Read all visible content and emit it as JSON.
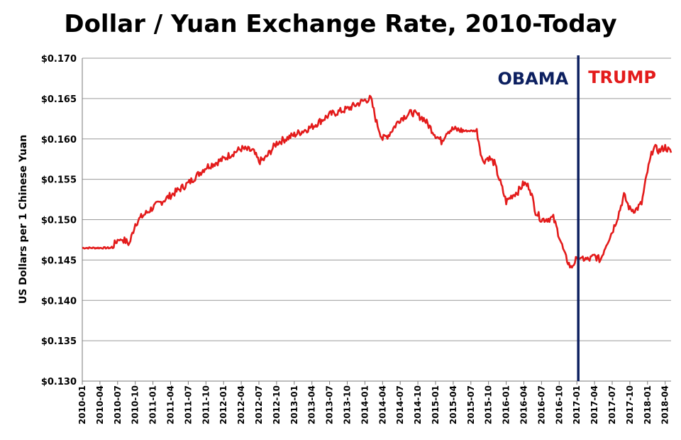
{
  "chart_data": {
    "type": "line",
    "title": "Dollar / Yuan Exchange Rate, 2010-Today",
    "xlabel": "",
    "ylabel": "US Dollars per 1 Chinese Yuan",
    "ylim": [
      0.13,
      0.17
    ],
    "xlim": [
      "2010-01",
      "2018-05"
    ],
    "y_ticks": [
      "$0.130",
      "$0.135",
      "$0.140",
      "$0.145",
      "$0.150",
      "$0.155",
      "$0.160",
      "$0.165",
      "$0.170"
    ],
    "y_tick_values": [
      0.13,
      0.135,
      0.14,
      0.145,
      0.15,
      0.155,
      0.16,
      0.165,
      0.17
    ],
    "x_ticks": [
      "2010-01",
      "2010-04",
      "2010-07",
      "2010-10",
      "2011-01",
      "2011-04",
      "2011-07",
      "2011-10",
      "2012-01",
      "2012-04",
      "2012-07",
      "2012-10",
      "2013-01",
      "2013-04",
      "2013-07",
      "2013-10",
      "2014-01",
      "2014-04",
      "2014-07",
      "2014-10",
      "2015-01",
      "2015-04",
      "2015-07",
      "2015-10",
      "2016-01",
      "2016-04",
      "2016-07",
      "2016-10",
      "2017-01",
      "2017-04",
      "2017-07",
      "2017-10",
      "2018-01",
      "2018-04"
    ],
    "grid": "horizontal",
    "line_color": "#e31b1b",
    "series": [
      {
        "x": [
          "2010-01",
          "2010-04",
          "2010-06",
          "2010-07",
          "2010-08",
          "2010-09",
          "2010-10",
          "2010-11",
          "2011-01",
          "2011-04",
          "2011-07",
          "2011-10",
          "2012-01",
          "2012-02",
          "2012-04",
          "2012-06",
          "2012-07",
          "2012-08",
          "2012-10",
          "2013-01",
          "2013-04",
          "2013-07",
          "2013-10",
          "2014-01",
          "2014-02",
          "2014-03",
          "2014-04",
          "2014-05",
          "2014-07",
          "2014-09",
          "2014-11",
          "2015-01",
          "2015-02",
          "2015-03",
          "2015-04",
          "2015-06",
          "2015-08",
          "2015-09",
          "2015-10",
          "2015-11",
          "2016-01",
          "2016-02",
          "2016-03",
          "2016-04",
          "2016-05",
          "2016-06",
          "2016-07",
          "2016-09",
          "2016-10",
          "2016-11",
          "2016-12",
          "2017-01",
          "2017-02",
          "2017-03",
          "2017-04",
          "2017-05",
          "2017-06",
          "2017-07",
          "2017-08",
          "2017-09",
          "2017-10",
          "2017-11",
          "2017-12",
          "2018-01",
          "2018-02",
          "2018-03",
          "2018-04",
          "2018-05"
        ],
        "values": [
          0.1465,
          0.1465,
          0.1465,
          0.1475,
          0.1475,
          0.147,
          0.1495,
          0.1503,
          0.1515,
          0.153,
          0.1545,
          0.1565,
          0.1575,
          0.158,
          0.1588,
          0.1585,
          0.1572,
          0.1575,
          0.1595,
          0.1605,
          0.1615,
          0.163,
          0.1637,
          0.1648,
          0.165,
          0.162,
          0.16,
          0.1605,
          0.1625,
          0.1633,
          0.1625,
          0.1605,
          0.1597,
          0.161,
          0.1612,
          0.161,
          0.161,
          0.1572,
          0.1577,
          0.157,
          0.1522,
          0.153,
          0.1535,
          0.1545,
          0.154,
          0.151,
          0.15,
          0.1502,
          0.148,
          0.1455,
          0.144,
          0.1452,
          0.1452,
          0.145,
          0.1455,
          0.145,
          0.147,
          0.1485,
          0.1505,
          0.153,
          0.1513,
          0.1512,
          0.152,
          0.156,
          0.159,
          0.1585,
          0.159,
          0.1583
        ]
      }
    ],
    "vertical_line": {
      "x": "2017-01",
      "color": "#0d2060"
    },
    "annotations": [
      {
        "text": "OBAMA",
        "color": "#0d2060"
      },
      {
        "text": "TRUMP",
        "color": "#e31b1b"
      }
    ]
  }
}
